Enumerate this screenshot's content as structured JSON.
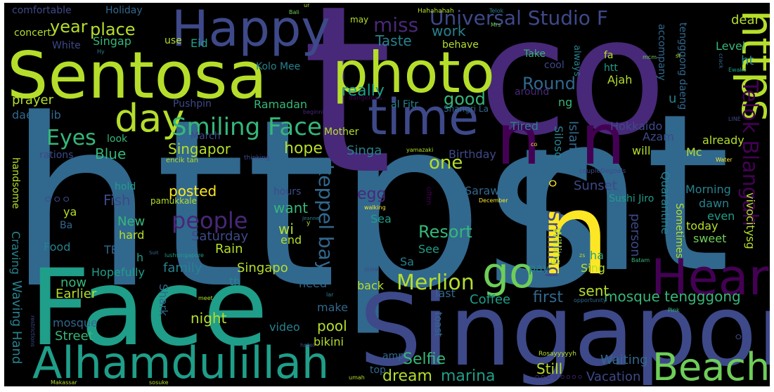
{
  "image": {
    "background": "#000000",
    "frame": "#ffffff",
    "palette": [
      "#440154",
      "#482878",
      "#3e4989",
      "#31688e",
      "#26828e",
      "#1f9e89",
      "#35b779",
      "#6ece58",
      "#b5de2b",
      "#fde725"
    ]
  },
  "words": [
    {
      "text": "https",
      "color": "#31688e"
    },
    {
      "text": "co",
      "color": "#482878"
    },
    {
      "text": "t",
      "color": "#482878"
    },
    {
      "text": "nt",
      "color": "#31688e"
    },
    {
      "text": "n",
      "color": "#fde725"
    },
    {
      "text": "Sentosa",
      "color": "#b5de2b"
    },
    {
      "text": "Face",
      "color": "#1f9e89"
    },
    {
      "text": "Singapore",
      "color": "#3e4989"
    },
    {
      "text": "photo",
      "color": "#b5de2b"
    },
    {
      "text": "time",
      "color": "#3e4989"
    },
    {
      "text": "Happy",
      "color": "#3e4989"
    },
    {
      "text": "Alhamdulillah",
      "color": "#1f9e89"
    },
    {
      "text": "Heart",
      "color": "#440154"
    },
    {
      "text": "Beach",
      "color": "#6ece58"
    },
    {
      "text": "https",
      "color": "#b5de2b"
    },
    {
      "text": "n",
      "color": "#440154"
    },
    {
      "text": "n",
      "color": "#440154"
    },
    {
      "text": "day",
      "color": "#b5de2b"
    },
    {
      "text": "go",
      "color": "#6ece58"
    },
    {
      "text": "Smiling Face",
      "color": "#35b779"
    },
    {
      "text": "Universal Studio F",
      "color": "#3e4989"
    },
    {
      "text": "Telok Blangah",
      "color": "#440154"
    },
    {
      "text": "people",
      "color": "#482878"
    },
    {
      "text": "Merlion",
      "color": "#b5de2b"
    },
    {
      "text": "keppel bay",
      "color": "#31688e"
    },
    {
      "text": "Eyes",
      "color": "#35b779"
    },
    {
      "text": "miss",
      "color": "#482878"
    },
    {
      "text": "place",
      "color": "#b5de2b"
    },
    {
      "text": "year",
      "color": "#b5de2b"
    },
    {
      "text": "Round",
      "color": "#31688e"
    },
    {
      "text": "good",
      "color": "#35b779"
    },
    {
      "text": "really",
      "color": "#1f9e89"
    },
    {
      "text": "work",
      "color": "#26828e"
    },
    {
      "text": "Taste",
      "color": "#26828e"
    },
    {
      "text": "Smiling",
      "color": "#3e4989"
    },
    {
      "text": "Resort",
      "color": "#35b779"
    },
    {
      "text": "one",
      "color": "#b5de2b"
    },
    {
      "text": "hope",
      "color": "#b5de2b"
    },
    {
      "text": "Selfie",
      "color": "#35b779"
    },
    {
      "text": "dream",
      "color": "#b5de2b"
    },
    {
      "text": "marina",
      "color": "#1f9e89"
    },
    {
      "text": "Still",
      "color": "#b5de2b"
    },
    {
      "text": "Vacation",
      "color": "#3e4989"
    },
    {
      "text": "Waiting",
      "color": "#31688e"
    },
    {
      "text": "pool",
      "color": "#b5de2b"
    },
    {
      "text": "night",
      "color": "#b5de2b"
    },
    {
      "text": "mosque tengggong",
      "color": "#35b779"
    },
    {
      "text": "sent",
      "color": "#b5de2b"
    },
    {
      "text": "first",
      "color": "#31688e"
    },
    {
      "text": "Coffee",
      "color": "#1f9e89"
    },
    {
      "text": "Singapor",
      "color": "#b5de2b"
    },
    {
      "text": "Singa",
      "color": "#26828e"
    },
    {
      "text": "Blue",
      "color": "#35b779"
    },
    {
      "text": "Fish",
      "color": "#3e4989"
    },
    {
      "text": "posted",
      "color": "#fde725"
    },
    {
      "text": "want",
      "color": "#35b779"
    },
    {
      "text": "egg",
      "color": "#482878"
    },
    {
      "text": "family",
      "color": "#26828e"
    },
    {
      "text": "Singapo",
      "color": "#b5de2b"
    },
    {
      "text": "Waving Hand",
      "color": "#26828e"
    },
    {
      "text": "Street",
      "color": "#35b779"
    },
    {
      "text": "Earlier",
      "color": "#b5de2b"
    },
    {
      "text": "now",
      "color": "#35b779"
    },
    {
      "text": "mosque",
      "color": "#31688e"
    },
    {
      "text": "bikini",
      "color": "#b5de2b"
    },
    {
      "text": "video",
      "color": "#26828e"
    },
    {
      "text": "Shark",
      "color": "#31688e"
    },
    {
      "text": "Hopefully",
      "color": "#1f9e89"
    },
    {
      "text": "Craving",
      "color": "#26828e"
    },
    {
      "text": "Food",
      "color": "#26828e"
    },
    {
      "text": "TEAR",
      "color": "#31688e"
    },
    {
      "text": "hard",
      "color": "#b5de2b"
    },
    {
      "text": "New",
      "color": "#35b779"
    },
    {
      "text": "Saturday",
      "color": "#3e4989"
    },
    {
      "text": "Rain",
      "color": "#b5de2b"
    },
    {
      "text": "wi",
      "color": "#b5de2b"
    },
    {
      "text": "end",
      "color": "#b5de2b"
    },
    {
      "text": "Sea",
      "color": "#1f9e89"
    },
    {
      "text": "See",
      "color": "#1f9e89"
    },
    {
      "text": "Sa",
      "color": "#26828e"
    },
    {
      "text": "back",
      "color": "#b5de2b"
    },
    {
      "text": "need",
      "color": "#31688e"
    },
    {
      "text": "make",
      "color": "#31688e"
    },
    {
      "text": "last",
      "color": "#31688e"
    },
    {
      "text": "th",
      "color": "#26828e"
    },
    {
      "text": "Sarawak",
      "color": "#31688e"
    },
    {
      "text": "hours",
      "color": "#3e4989"
    },
    {
      "text": "Sunset",
      "color": "#3e4989"
    },
    {
      "text": "Island",
      "color": "#31688e"
    },
    {
      "text": "Siloso",
      "color": "#26828e"
    },
    {
      "text": "Birthday",
      "color": "#3e4989"
    },
    {
      "text": "Tired",
      "color": "#26828e"
    },
    {
      "text": "Hokkaido",
      "color": "#3e4989"
    },
    {
      "text": "Azam",
      "color": "#3e4989"
    },
    {
      "text": "will",
      "color": "#b5de2b"
    },
    {
      "text": "already",
      "color": "#b5de2b"
    },
    {
      "text": "Morning",
      "color": "#26828e"
    },
    {
      "text": "dawn",
      "color": "#26828e"
    },
    {
      "text": "even",
      "color": "#1f9e89"
    },
    {
      "text": "today",
      "color": "#b5de2b"
    },
    {
      "text": "sweet",
      "color": "#6ece58"
    },
    {
      "text": "person",
      "color": "#3e4989"
    },
    {
      "text": "Quarantine",
      "color": "#26828e"
    },
    {
      "text": "Sometimes",
      "color": "#b5de2b"
    },
    {
      "text": "vivocitysg",
      "color": "#b5de2b"
    },
    {
      "text": "ha",
      "color": "#1f9e89"
    },
    {
      "text": "Sing",
      "color": "#b5de2b"
    },
    {
      "text": "pay",
      "color": "#26828e"
    },
    {
      "text": "Willing",
      "color": "#b5de2b"
    },
    {
      "text": "Sushi Jiro",
      "color": "#1f9e89"
    },
    {
      "text": "toast",
      "color": "#31688e"
    },
    {
      "text": "Level",
      "color": "#35b779"
    },
    {
      "text": "dear",
      "color": "#b5de2b"
    },
    {
      "text": "ht",
      "color": "#26828e"
    },
    {
      "text": "ng",
      "color": "#35b779"
    },
    {
      "text": "u",
      "color": "#26828e"
    },
    {
      "text": "Ajah",
      "color": "#b5de2b"
    },
    {
      "text": "htt",
      "color": "#1f9e89"
    },
    {
      "text": "cool",
      "color": "#3e4989"
    },
    {
      "text": "Take",
      "color": "#35b779"
    },
    {
      "text": "fa",
      "color": "#b5de2b"
    },
    {
      "text": "always",
      "color": "#26828e"
    },
    {
      "text": "around",
      "color": "#482878"
    },
    {
      "text": "accompany",
      "color": "#31688e"
    },
    {
      "text": "tengggong daeng",
      "color": "#31688e"
    },
    {
      "text": "Mc",
      "color": "#b5de2b"
    },
    {
      "text": "behave",
      "color": "#b5de2b"
    },
    {
      "text": "Ramadan",
      "color": "#35b779"
    },
    {
      "text": "Pushpin",
      "color": "#3e4989"
    },
    {
      "text": "al Fitr",
      "color": "#26828e"
    },
    {
      "text": "Shangri La",
      "color": "#31688e"
    },
    {
      "text": "Mother",
      "color": "#b5de2b"
    },
    {
      "text": "March",
      "color": "#3e4989"
    },
    {
      "text": "look",
      "color": "#35b779"
    },
    {
      "text": "prayer",
      "color": "#b5de2b"
    },
    {
      "text": "daeng ib",
      "color": "#31688e"
    },
    {
      "text": "rations",
      "color": "#3e4989"
    },
    {
      "text": "handsome",
      "color": "#b5de2b"
    },
    {
      "text": "hold",
      "color": "#1f9e89"
    },
    {
      "text": "pamukkale",
      "color": "#b5de2b"
    },
    {
      "text": "ya",
      "color": "#b5de2b"
    },
    {
      "text": "Ba",
      "color": "#31688e"
    },
    {
      "text": "h",
      "color": "#1f9e89"
    },
    {
      "text": "Kolo Mee",
      "color": "#26828e"
    },
    {
      "text": "Eid",
      "color": "#1f9e89"
    },
    {
      "text": "use",
      "color": "#b5de2b"
    },
    {
      "text": "Singap",
      "color": "#35b779"
    },
    {
      "text": "concert",
      "color": "#b5de2b"
    },
    {
      "text": "White",
      "color": "#3e4989"
    },
    {
      "text": "comfortable",
      "color": "#3e4989"
    },
    {
      "text": "Holiday",
      "color": "#31688e"
    },
    {
      "text": "may",
      "color": "#b5de2b"
    },
    {
      "text": "Hahahahah",
      "color": "#b5de2b"
    },
    {
      "text": "Bali",
      "color": "#6ece58"
    },
    {
      "text": "Telok",
      "color": "#26828e"
    },
    {
      "text": "Mrs",
      "color": "#6ece58"
    },
    {
      "text": "Hy",
      "color": "#26828e"
    },
    {
      "text": "ur",
      "color": "#b5de2b"
    },
    {
      "text": "mcm",
      "color": "#6ece58"
    },
    {
      "text": "st",
      "color": "#b5de2b"
    },
    {
      "text": "Ewako",
      "color": "#1f9e89"
    },
    {
      "text": "crack",
      "color": "#31688e"
    },
    {
      "text": "dangerous",
      "color": "#440154"
    },
    {
      "text": "beginning",
      "color": "#482878"
    },
    {
      "text": "LINE",
      "color": "#3e4989"
    },
    {
      "text": "co",
      "color": "#fde725"
    },
    {
      "text": "yamazaki",
      "color": "#b5de2b"
    },
    {
      "text": "thinking",
      "color": "#3e4989"
    },
    {
      "text": "encik tan",
      "color": "#b5de2b"
    },
    {
      "text": "Water",
      "color": "#fde725"
    },
    {
      "text": "coupleGegoals",
      "color": "#3e4989"
    },
    {
      "text": "December",
      "color": "#fde725"
    },
    {
      "text": "walking",
      "color": "#fde725"
    },
    {
      "text": "often",
      "color": "#440154"
    },
    {
      "text": "Jeanne",
      "color": "#26828e"
    },
    {
      "text": "y",
      "color": "#b5de2b"
    },
    {
      "text": "Suit",
      "color": "#31688e"
    },
    {
      "text": "lushsingapore",
      "color": "#1f9e89"
    },
    {
      "text": "zs",
      "color": "#b5de2b"
    },
    {
      "text": "Batam",
      "color": "#35b779"
    },
    {
      "text": "store",
      "color": "#3e4989"
    },
    {
      "text": "lar",
      "color": "#26828e"
    },
    {
      "text": "meet",
      "color": "#b5de2b"
    },
    {
      "text": "opportunity",
      "color": "#31688e"
    },
    {
      "text": "Pink",
      "color": "#35b779"
    },
    {
      "text": "restrictions",
      "color": "#3e4989"
    },
    {
      "text": "hotel",
      "color": "#3e4989"
    },
    {
      "text": "amp",
      "color": "#31688e"
    },
    {
      "text": "top",
      "color": "#31688e"
    },
    {
      "text": "umah",
      "color": "#b5de2b"
    },
    {
      "text": "Rosayyyyyh",
      "color": "#b5de2b"
    },
    {
      "text": "sosuke",
      "color": "#b5de2b"
    },
    {
      "text": "Makassar",
      "color": "#b5de2b"
    },
    {
      "text": "ㅇㅇㅇㅇ ㅇㅇㅇㅇ",
      "color": "#482878"
    },
    {
      "text": "ㅇㅇㅇ",
      "color": "#3e4989"
    },
    {
      "text": "ㅇㅇ",
      "color": "#3e4989"
    },
    {
      "text": "ㅇ",
      "color": "#fde725"
    }
  ]
}
